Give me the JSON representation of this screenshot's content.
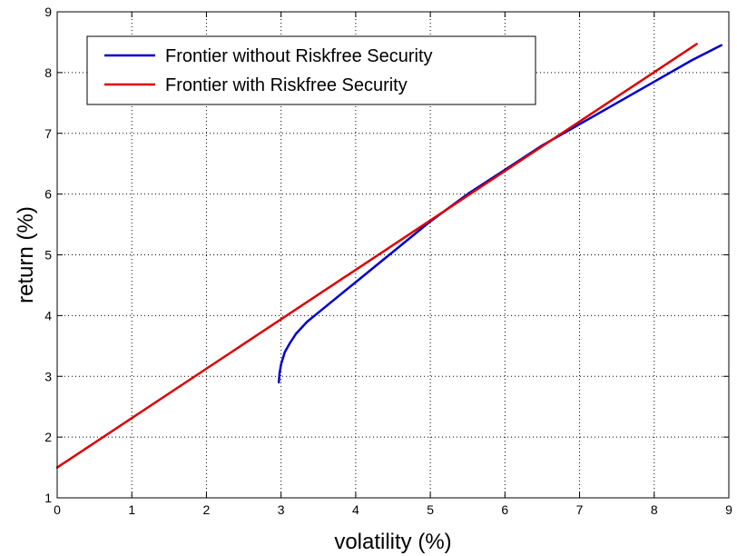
{
  "chart_data": {
    "type": "line",
    "title": "",
    "xlabel": "volatility (%)",
    "ylabel": "return (%)",
    "xlim": [
      0,
      9
    ],
    "ylim": [
      1,
      9
    ],
    "xticks": [
      0,
      1,
      2,
      3,
      4,
      5,
      6,
      7,
      8,
      9
    ],
    "yticks": [
      1,
      2,
      3,
      4,
      5,
      6,
      7,
      8,
      9
    ],
    "grid": true,
    "legend": "top-left",
    "series": [
      {
        "name": "Frontier without Riskfree Security",
        "color": "#0000cc",
        "points": [
          [
            2.97,
            2.9
          ],
          [
            2.98,
            3.05
          ],
          [
            3.0,
            3.2
          ],
          [
            3.05,
            3.4
          ],
          [
            3.12,
            3.55
          ],
          [
            3.2,
            3.7
          ],
          [
            3.35,
            3.9
          ],
          [
            3.55,
            4.1
          ],
          [
            3.75,
            4.3
          ],
          [
            4.0,
            4.55
          ],
          [
            4.3,
            4.85
          ],
          [
            4.6,
            5.15
          ],
          [
            5.0,
            5.55
          ],
          [
            5.5,
            6.0
          ],
          [
            6.0,
            6.4
          ],
          [
            6.5,
            6.8
          ],
          [
            7.0,
            7.15
          ],
          [
            7.5,
            7.5
          ],
          [
            8.0,
            7.85
          ],
          [
            8.5,
            8.2
          ],
          [
            8.9,
            8.45
          ]
        ]
      },
      {
        "name": "Frontier with Riskfree Security",
        "color": "#dd0000",
        "points": [
          [
            0,
            1.5
          ],
          [
            8.57,
            8.47
          ]
        ]
      }
    ]
  }
}
